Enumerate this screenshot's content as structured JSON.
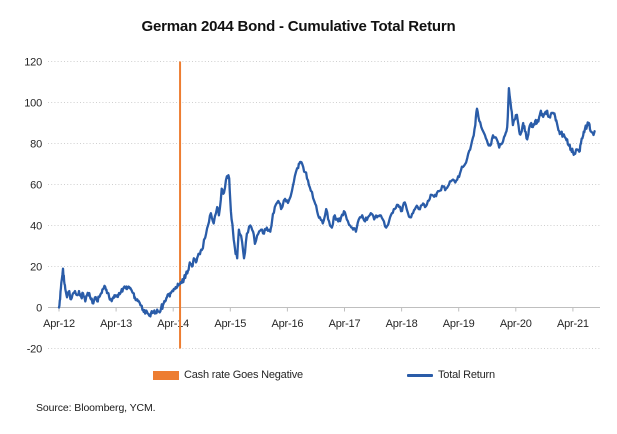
{
  "figure": {
    "title": "German 2044 Bond - Cumulative Total Return",
    "source": "Source: Bloomberg, YCM."
  },
  "legend": {
    "cash_rate_label": "Cash rate Goes Negative",
    "total_return_label": "Total Return"
  },
  "colors": {
    "annotation_orange": "#ED7D31",
    "series_blue": "#2A5CA8",
    "gridline": "#CFCFCF",
    "axis_line": "#BFBFBF",
    "tick_text": "#262626"
  },
  "chart_data": {
    "type": "line",
    "title": "German 2044 Bond - Cumulative Total Return",
    "xlabel": "",
    "ylabel": "",
    "grid": true,
    "legend_position": "bottom",
    "x_axis": {
      "tick_labels": [
        "Apr-12",
        "Apr-13",
        "Apr-14",
        "Apr-15",
        "Apr-16",
        "Apr-17",
        "Apr-18",
        "Apr-19",
        "Apr-20",
        "Apr-21"
      ],
      "tick_positions_years": [
        0,
        1,
        2,
        3,
        4,
        5,
        6,
        7,
        8,
        9
      ],
      "range_years": [
        -0.2,
        9.47
      ]
    },
    "y_axis": {
      "min": -20,
      "max": 120,
      "step": 20,
      "tick_labels": [
        "-20",
        "0",
        "20",
        "40",
        "60",
        "80",
        "100",
        "120"
      ],
      "tick_values": [
        -20,
        0,
        20,
        40,
        60,
        80,
        100,
        120
      ]
    },
    "annotation_line": {
      "label": "Cash rate Goes Negative",
      "x_years": 2.12,
      "color": "#ED7D31",
      "note": "vertical line mid-2014"
    },
    "series": [
      {
        "name": "Total Return",
        "color": "#2A5CA8",
        "x_unit": "years since Apr-2012",
        "points": [
          [
            0,
            0
          ],
          [
            0.02,
            4
          ],
          [
            0.04,
            12
          ],
          [
            0.07,
            19
          ],
          [
            0.09,
            13
          ],
          [
            0.11,
            9
          ],
          [
            0.14,
            5
          ],
          [
            0.18,
            8
          ],
          [
            0.21,
            4
          ],
          [
            0.25,
            7
          ],
          [
            0.28,
            8
          ],
          [
            0.32,
            6
          ],
          [
            0.35,
            8
          ],
          [
            0.39,
            5
          ],
          [
            0.42,
            7
          ],
          [
            0.46,
            3
          ],
          [
            0.49,
            6
          ],
          [
            0.53,
            7
          ],
          [
            0.56,
            4
          ],
          [
            0.6,
            2
          ],
          [
            0.63,
            5
          ],
          [
            0.67,
            3
          ],
          [
            0.7,
            5
          ],
          [
            0.74,
            7
          ],
          [
            0.77,
            9
          ],
          [
            0.81,
            10
          ],
          [
            0.84,
            7
          ],
          [
            0.88,
            5
          ],
          [
            0.91,
            4
          ],
          [
            0.95,
            5
          ],
          [
            0.98,
            6
          ],
          [
            1.02,
            6
          ],
          [
            1.05,
            7
          ],
          [
            1.09,
            8
          ],
          [
            1.12,
            9
          ],
          [
            1.16,
            10
          ],
          [
            1.19,
            9
          ],
          [
            1.23,
            10
          ],
          [
            1.26,
            9
          ],
          [
            1.3,
            7
          ],
          [
            1.33,
            5
          ],
          [
            1.37,
            4
          ],
          [
            1.4,
            3
          ],
          [
            1.44,
            1
          ],
          [
            1.47,
            -1
          ],
          [
            1.51,
            -3
          ],
          [
            1.54,
            -2
          ],
          [
            1.58,
            -4
          ],
          [
            1.61,
            -3
          ],
          [
            1.65,
            -2
          ],
          [
            1.68,
            -3
          ],
          [
            1.72,
            -1
          ],
          [
            1.75,
            -2
          ],
          [
            1.79,
            0
          ],
          [
            1.82,
            1
          ],
          [
            1.86,
            3
          ],
          [
            1.89,
            5
          ],
          [
            1.93,
            6
          ],
          [
            1.96,
            7
          ],
          [
            2,
            8
          ],
          [
            2.03,
            9
          ],
          [
            2.07,
            10
          ],
          [
            2.1,
            11
          ],
          [
            2.15,
            12
          ],
          [
            2.19,
            14
          ],
          [
            2.22,
            16
          ],
          [
            2.26,
            18
          ],
          [
            2.29,
            22
          ],
          [
            2.33,
            20
          ],
          [
            2.36,
            24
          ],
          [
            2.4,
            22
          ],
          [
            2.43,
            25
          ],
          [
            2.47,
            26
          ],
          [
            2.5,
            28
          ],
          [
            2.56,
            34
          ],
          [
            2.61,
            40
          ],
          [
            2.66,
            46
          ],
          [
            2.71,
            41
          ],
          [
            2.77,
            49
          ],
          [
            2.8,
            45
          ],
          [
            2.85,
            58
          ],
          [
            2.89,
            56
          ],
          [
            2.94,
            64
          ],
          [
            2.98,
            63
          ],
          [
            3.01,
            47
          ],
          [
            3.05,
            36
          ],
          [
            3.08,
            29
          ],
          [
            3.12,
            24
          ],
          [
            3.15,
            38
          ],
          [
            3.19,
            35
          ],
          [
            3.24,
            24
          ],
          [
            3.29,
            36
          ],
          [
            3.35,
            40
          ],
          [
            3.4,
            37
          ],
          [
            3.43,
            31
          ],
          [
            3.49,
            36
          ],
          [
            3.54,
            38
          ],
          [
            3.59,
            36
          ],
          [
            3.64,
            39
          ],
          [
            3.7,
            37
          ],
          [
            3.73,
            42
          ],
          [
            3.78,
            49
          ],
          [
            3.84,
            52
          ],
          [
            3.89,
            48
          ],
          [
            3.96,
            53
          ],
          [
            4.01,
            51
          ],
          [
            4.08,
            57
          ],
          [
            4.13,
            64
          ],
          [
            4.19,
            68
          ],
          [
            4.22,
            71
          ],
          [
            4.26,
            70
          ],
          [
            4.31,
            66
          ],
          [
            4.36,
            62
          ],
          [
            4.41,
            57
          ],
          [
            4.47,
            52
          ],
          [
            4.52,
            47
          ],
          [
            4.57,
            44
          ],
          [
            4.62,
            41
          ],
          [
            4.68,
            48
          ],
          [
            4.73,
            42
          ],
          [
            4.78,
            39
          ],
          [
            4.83,
            45
          ],
          [
            4.89,
            42
          ],
          [
            4.94,
            44
          ],
          [
            4.99,
            47
          ],
          [
            5.04,
            43
          ],
          [
            5.1,
            40
          ],
          [
            5.15,
            38
          ],
          [
            5.2,
            37
          ],
          [
            5.25,
            43
          ],
          [
            5.31,
            45
          ],
          [
            5.36,
            42
          ],
          [
            5.41,
            44
          ],
          [
            5.46,
            46
          ],
          [
            5.52,
            43
          ],
          [
            5.57,
            44
          ],
          [
            5.62,
            45
          ],
          [
            5.67,
            43
          ],
          [
            5.73,
            39
          ],
          [
            5.78,
            42
          ],
          [
            5.83,
            46
          ],
          [
            5.88,
            48
          ],
          [
            5.94,
            50
          ],
          [
            5.99,
            47
          ],
          [
            6.04,
            51
          ],
          [
            6.09,
            48
          ],
          [
            6.15,
            44
          ],
          [
            6.2,
            46
          ],
          [
            6.25,
            49
          ],
          [
            6.3,
            48
          ],
          [
            6.36,
            50
          ],
          [
            6.41,
            49
          ],
          [
            6.46,
            52
          ],
          [
            6.51,
            55
          ],
          [
            6.57,
            54
          ],
          [
            6.62,
            56
          ],
          [
            6.67,
            57
          ],
          [
            6.73,
            59
          ],
          [
            6.78,
            58
          ],
          [
            6.83,
            60
          ],
          [
            6.88,
            62
          ],
          [
            6.94,
            61
          ],
          [
            6.99,
            64
          ],
          [
            7.04,
            67
          ],
          [
            7.09,
            69
          ],
          [
            7.15,
            73
          ],
          [
            7.2,
            77
          ],
          [
            7.25,
            83
          ],
          [
            7.29,
            89
          ],
          [
            7.32,
            97
          ],
          [
            7.36,
            91
          ],
          [
            7.41,
            87
          ],
          [
            7.46,
            84
          ],
          [
            7.51,
            80
          ],
          [
            7.55,
            79
          ],
          [
            7.6,
            84
          ],
          [
            7.65,
            83
          ],
          [
            7.71,
            78
          ],
          [
            7.76,
            80
          ],
          [
            7.81,
            84
          ],
          [
            7.85,
            88
          ],
          [
            7.88,
            107
          ],
          [
            7.92,
            97
          ],
          [
            7.95,
            89
          ],
          [
            7.99,
            92
          ],
          [
            8.02,
            94
          ],
          [
            8.06,
            86
          ],
          [
            8.09,
            85
          ],
          [
            8.13,
            90
          ],
          [
            8.16,
            86
          ],
          [
            8.2,
            82
          ],
          [
            8.23,
            87
          ],
          [
            8.27,
            90
          ],
          [
            8.3,
            88
          ],
          [
            8.34,
            91
          ],
          [
            8.37,
            90
          ],
          [
            8.41,
            93
          ],
          [
            8.44,
            96
          ],
          [
            8.48,
            93
          ],
          [
            8.51,
            95
          ],
          [
            8.55,
            96
          ],
          [
            8.58,
            93
          ],
          [
            8.61,
            94
          ],
          [
            8.65,
            95
          ],
          [
            8.69,
            93
          ],
          [
            8.72,
            90
          ],
          [
            8.76,
            86
          ],
          [
            8.79,
            85
          ],
          [
            8.83,
            84
          ],
          [
            8.86,
            83
          ],
          [
            8.9,
            82
          ],
          [
            8.93,
            79
          ],
          [
            8.97,
            77
          ],
          [
            9,
            76
          ],
          [
            9.04,
            75
          ],
          [
            9.07,
            77
          ],
          [
            9.11,
            76
          ],
          [
            9.14,
            80
          ],
          [
            9.18,
            84
          ],
          [
            9.21,
            87
          ],
          [
            9.25,
            89
          ],
          [
            9.28,
            90
          ],
          [
            9.31,
            86
          ],
          [
            9.35,
            85
          ],
          [
            9.38,
            86
          ]
        ]
      }
    ]
  }
}
